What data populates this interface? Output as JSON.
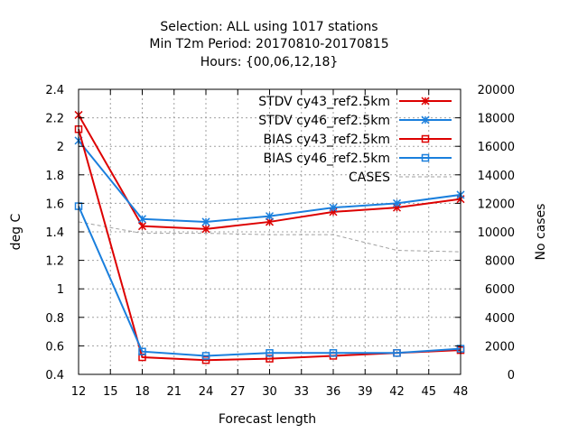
{
  "chart_data": {
    "type": "line",
    "title_lines": [
      "Selection: ALL using  1017 stations",
      "Min T2m   Period: 20170810-20170815",
      "Hours: {00,06,12,18}"
    ],
    "xlabel": "Forecast length",
    "ylabel": "deg C",
    "y2label": "No cases",
    "xlim": [
      12,
      48
    ],
    "ylim": [
      0.4,
      2.4
    ],
    "y2lim": [
      0,
      20000
    ],
    "xticks": [
      12,
      15,
      18,
      21,
      24,
      27,
      30,
      33,
      36,
      39,
      42,
      45,
      48
    ],
    "yticks": [
      "0.4",
      "0.6",
      "0.8",
      "1",
      "1.2",
      "1.4",
      "1.6",
      "1.8",
      "2",
      "2.2",
      "2.4"
    ],
    "y2ticks": [
      "0",
      "2000",
      "4000",
      "6000",
      "8000",
      "10000",
      "12000",
      "14000",
      "16000",
      "18000",
      "20000"
    ],
    "grid": true,
    "legend_position": "top-right",
    "x": [
      12,
      18,
      24,
      30,
      36,
      42,
      48
    ],
    "series": [
      {
        "name": "STDV cy43_ref2.5km",
        "color": "#dd0000",
        "marker": "x",
        "axis": "left",
        "values": [
          2.22,
          1.44,
          1.42,
          1.47,
          1.54,
          1.57,
          1.63
        ]
      },
      {
        "name": "STDV cy46_ref2.5km",
        "color": "#1a7fdd",
        "marker": "x",
        "axis": "left",
        "values": [
          2.04,
          1.49,
          1.47,
          1.51,
          1.57,
          1.6,
          1.66
        ]
      },
      {
        "name": "BIAS cy43_ref2.5km",
        "color": "#dd0000",
        "marker": "square",
        "axis": "left",
        "values": [
          2.12,
          0.52,
          0.5,
          0.51,
          0.53,
          0.55,
          0.57
        ]
      },
      {
        "name": "BIAS cy46_ref2.5km",
        "color": "#1a7fdd",
        "marker": "square",
        "axis": "left",
        "values": [
          1.58,
          0.56,
          0.53,
          0.55,
          0.55,
          0.55,
          0.58
        ]
      },
      {
        "name": "CASES",
        "color": "#a0a0a0",
        "marker": "none",
        "dashed": true,
        "axis": "right",
        "values": [
          10700,
          9900,
          9900,
          9800,
          9800,
          8700,
          8600
        ]
      }
    ]
  }
}
